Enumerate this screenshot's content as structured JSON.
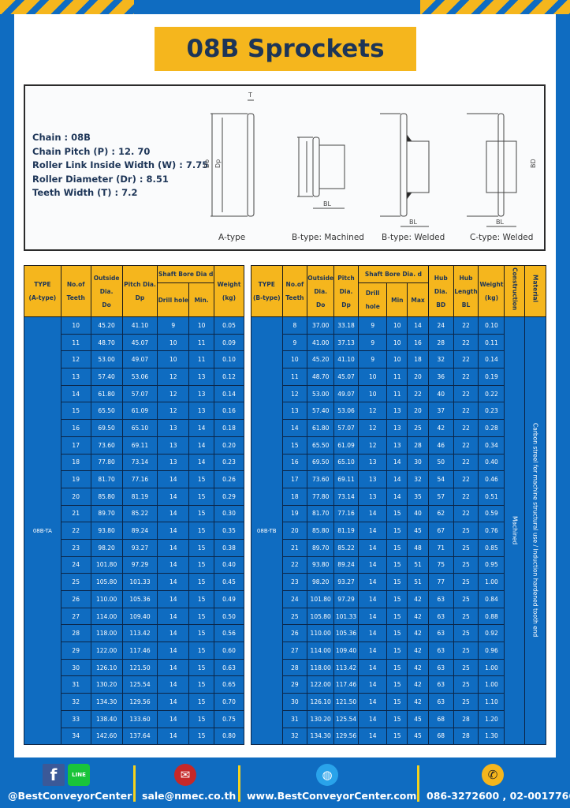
{
  "title": "08B Sprockets",
  "specs": {
    "chain": "Chain  : 08B",
    "pitch": "Chain Pitch (P)  :  12. 70",
    "link_width": "Roller Link Inside Width (W)  :  7.75",
    "roller_dia": "Roller Diameter (Dr)  : 8.51",
    "teeth_width": "Teeth Width (T)  :  7.2"
  },
  "diagram": {
    "captions": [
      "A-type",
      "B-type: Machined",
      "B-type: Welded",
      "C-type: Welded"
    ],
    "labels": {
      "T": "T",
      "Do": "Do",
      "Dp": "Dp",
      "d": "d",
      "BL": "BL",
      "BD": "BD"
    }
  },
  "table_a": {
    "headers": {
      "type": "TYPE",
      "type_sub": "(A-type)",
      "teeth": "No.of",
      "teeth_sub": "Teeth",
      "do": "Outside",
      "do_sub": "Dia.",
      "do_sub2": "Do",
      "dp": "Pitch Dia.",
      "dp_sub": "Dp",
      "bore": "Shaft Bore Dia d",
      "drill": "Drill hole",
      "min": "Min.",
      "weight": "Weight",
      "weight_sub": "(kg)"
    },
    "type_value": "08B-TA",
    "rows": [
      [
        "10",
        "45.20",
        "41.10",
        "9",
        "10",
        "0.05"
      ],
      [
        "11",
        "48.70",
        "45.07",
        "10",
        "11",
        "0.09"
      ],
      [
        "12",
        "53.00",
        "49.07",
        "10",
        "11",
        "0.10"
      ],
      [
        "13",
        "57.40",
        "53.06",
        "12",
        "13",
        "0.12"
      ],
      [
        "14",
        "61.80",
        "57.07",
        "12",
        "13",
        "0.14"
      ],
      [
        "15",
        "65.50",
        "61.09",
        "12",
        "13",
        "0.16"
      ],
      [
        "16",
        "69.50",
        "65.10",
        "13",
        "14",
        "0.18"
      ],
      [
        "17",
        "73.60",
        "69.11",
        "13",
        "14",
        "0.20"
      ],
      [
        "18",
        "77.80",
        "73.14",
        "13",
        "14",
        "0.23"
      ],
      [
        "19",
        "81.70",
        "77.16",
        "14",
        "15",
        "0.26"
      ],
      [
        "20",
        "85.80",
        "81.19",
        "14",
        "15",
        "0.29"
      ],
      [
        "21",
        "89.70",
        "85.22",
        "14",
        "15",
        "0.30"
      ],
      [
        "22",
        "93.80",
        "89.24",
        "14",
        "15",
        "0.35"
      ],
      [
        "23",
        "98.20",
        "93.27",
        "14",
        "15",
        "0.38"
      ],
      [
        "24",
        "101.80",
        "97.29",
        "14",
        "15",
        "0.40"
      ],
      [
        "25",
        "105.80",
        "101.33",
        "14",
        "15",
        "0.45"
      ],
      [
        "26",
        "110.00",
        "105.36",
        "14",
        "15",
        "0.49"
      ],
      [
        "27",
        "114.00",
        "109.40",
        "14",
        "15",
        "0.50"
      ],
      [
        "28",
        "118.00",
        "113.42",
        "14",
        "15",
        "0.56"
      ],
      [
        "29",
        "122.00",
        "117.46",
        "14",
        "15",
        "0.60"
      ],
      [
        "30",
        "126.10",
        "121.50",
        "14",
        "15",
        "0.63"
      ],
      [
        "31",
        "130.20",
        "125.54",
        "14",
        "15",
        "0.65"
      ],
      [
        "32",
        "134.30",
        "129.56",
        "14",
        "15",
        "0.70"
      ],
      [
        "33",
        "138.40",
        "133.60",
        "14",
        "15",
        "0.75"
      ],
      [
        "34",
        "142.60",
        "137.64",
        "14",
        "15",
        "0.80"
      ]
    ]
  },
  "table_b": {
    "headers": {
      "type": "TYPE",
      "type_sub": "(B-type)",
      "teeth": "No.of",
      "teeth_sub": "Teeth",
      "do": "Outside",
      "do_sub": "Dia.",
      "do_sub2": "Do",
      "dp": "Pitch",
      "dp_sub": "Dia.",
      "dp_sub2": "Dp",
      "bore": "Shaft Bore Dia. d",
      "drill": "Drill hole",
      "min": "Min",
      "max": "Max",
      "bd": "Hub",
      "bd_sub": "Dia.",
      "bd_sub2": "BD",
      "bl": "Hub",
      "bl_sub": "Length",
      "bl_sub2": "BL",
      "weight": "Weight",
      "weight_sub": "(kg)",
      "construction": "Construction",
      "material": "Material"
    },
    "type_value": "08B-TB",
    "construction_value": "Machined",
    "material_value": "Carbon streel for machine structural use / Induction hardened tooth end",
    "rows": [
      [
        "8",
        "37.00",
        "33.18",
        "9",
        "10",
        "14",
        "24",
        "22",
        "0.10"
      ],
      [
        "9",
        "41.00",
        "37.13",
        "9",
        "10",
        "16",
        "28",
        "22",
        "0.11"
      ],
      [
        "10",
        "45.20",
        "41.10",
        "9",
        "10",
        "18",
        "32",
        "22",
        "0.14"
      ],
      [
        "11",
        "48.70",
        "45.07",
        "10",
        "11",
        "20",
        "36",
        "22",
        "0.19"
      ],
      [
        "12",
        "53.00",
        "49.07",
        "10",
        "11",
        "22",
        "40",
        "22",
        "0.22"
      ],
      [
        "13",
        "57.40",
        "53.06",
        "12",
        "13",
        "20",
        "37",
        "22",
        "0.23"
      ],
      [
        "14",
        "61.80",
        "57.07",
        "12",
        "13",
        "25",
        "42",
        "22",
        "0.28"
      ],
      [
        "15",
        "65.50",
        "61.09",
        "12",
        "13",
        "28",
        "46",
        "22",
        "0.34"
      ],
      [
        "16",
        "69.50",
        "65.10",
        "13",
        "14",
        "30",
        "50",
        "22",
        "0.40"
      ],
      [
        "17",
        "73.60",
        "69.11",
        "13",
        "14",
        "32",
        "54",
        "22",
        "0.46"
      ],
      [
        "18",
        "77.80",
        "73.14",
        "13",
        "14",
        "35",
        "57",
        "22",
        "0.51"
      ],
      [
        "19",
        "81.70",
        "77.16",
        "14",
        "15",
        "40",
        "62",
        "22",
        "0.59"
      ],
      [
        "20",
        "85.80",
        "81.19",
        "14",
        "15",
        "45",
        "67",
        "25",
        "0.76"
      ],
      [
        "21",
        "89.70",
        "85.22",
        "14",
        "15",
        "48",
        "71",
        "25",
        "0.85"
      ],
      [
        "22",
        "93.80",
        "89.24",
        "14",
        "15",
        "51",
        "75",
        "25",
        "0.95"
      ],
      [
        "23",
        "98.20",
        "93.27",
        "14",
        "15",
        "51",
        "77",
        "25",
        "1.00"
      ],
      [
        "24",
        "101.80",
        "97.29",
        "14",
        "15",
        "42",
        "63",
        "25",
        "0.84"
      ],
      [
        "25",
        "105.80",
        "101.33",
        "14",
        "15",
        "42",
        "63",
        "25",
        "0.88"
      ],
      [
        "26",
        "110.00",
        "105.36",
        "14",
        "15",
        "42",
        "63",
        "25",
        "0.92"
      ],
      [
        "27",
        "114.00",
        "109.40",
        "14",
        "15",
        "42",
        "63",
        "25",
        "0.96"
      ],
      [
        "28",
        "118.00",
        "113.42",
        "14",
        "15",
        "42",
        "63",
        "25",
        "1.00"
      ],
      [
        "29",
        "122.00",
        "117.46",
        "14",
        "15",
        "42",
        "63",
        "25",
        "1.00"
      ],
      [
        "30",
        "126.10",
        "121.50",
        "14",
        "15",
        "42",
        "63",
        "25",
        "1.10"
      ],
      [
        "31",
        "130.20",
        "125.54",
        "14",
        "15",
        "45",
        "68",
        "28",
        "1.20"
      ],
      [
        "32",
        "134.30",
        "129.56",
        "14",
        "15",
        "45",
        "68",
        "28",
        "1.30"
      ]
    ]
  },
  "footer": {
    "social": "@BestConveyorCenter",
    "facebook_icon": "f",
    "line_icon": "LINE",
    "email": "sale@nmec.co.th",
    "website": "www.BestConveyorCenter.com",
    "phone": "086-3272600 , 02-0017766",
    "colors": {
      "accent": "#f5b61d",
      "background": "#0f6cc1"
    }
  }
}
